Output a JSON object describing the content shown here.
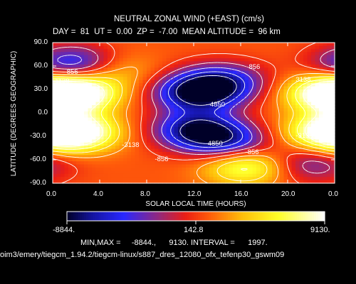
{
  "title_line1": "NEUTRAL ZONAL WIND (+EAST) (cm/s)",
  "title_line2": "DAY =  81  UT =  0.00  ZP =  -7.00  MEAN ALTITUDE =  96 km",
  "footer": {
    "minmax": "MIN,MAX =     -8844.,      9130. INTERVAL =      1997.",
    "path": "oim3/emery/tiegcm_1.94.2/tiegcm-linux/s887_dres_12080_ofx_tefenp30_gswm09"
  },
  "colorbar": {
    "min_label": "-8844.",
    "mid_label": "142.8",
    "max_label": "9130."
  },
  "chart_data": {
    "type": "heatmap",
    "title": "NEUTRAL ZONAL WIND (+EAST) (cm/s)",
    "xlabel": "SOLAR LOCAL TIME (HOURS)",
    "ylabel": "LATITUDE (DEGREES GEOGRAPHIC)",
    "xlim": [
      0,
      24
    ],
    "ylim": [
      -90,
      90
    ],
    "x_ticks": [
      "0.0",
      "4.0",
      "8.0",
      "12.0",
      "16.0",
      "20.0",
      "0.0"
    ],
    "y_ticks": [
      "90.0",
      "60.0",
      "30.0",
      "0.0",
      "-30.0",
      "-60.0",
      "-90.0"
    ],
    "min": -8844,
    "max": 9130,
    "interval": 1997,
    "center_value": 142.8,
    "contour_labels": [
      {
        "text": "856",
        "x": 1.8,
        "y": 52
      },
      {
        "text": "1138",
        "x": 0.8,
        "y": 40
      },
      {
        "text": "856",
        "x": 17.3,
        "y": 58
      },
      {
        "text": "3138",
        "x": 21.3,
        "y": 42
      },
      {
        "text": "-4850",
        "x": 13.8,
        "y": 10
      },
      {
        "text": "-3138",
        "x": 1.8,
        "y": -5
      },
      {
        "text": "-3138",
        "x": 21.3,
        "y": -30
      },
      {
        "text": "-3138",
        "x": 6.5,
        "y": -42
      },
      {
        "text": "4850",
        "x": 13.8,
        "y": -40
      },
      {
        "text": "-856",
        "x": 17.0,
        "y": -51
      },
      {
        "text": "-856",
        "x": 9.3,
        "y": -60
      }
    ],
    "features": [
      {
        "kind": "westward_max",
        "x": 1.9,
        "y": 62,
        "value": -7000
      },
      {
        "kind": "westward_max",
        "x": 12.3,
        "y": 25,
        "value": -8844
      },
      {
        "kind": "westward_max",
        "x": 14.4,
        "y": 40,
        "value": -6000
      },
      {
        "kind": "westward_max",
        "x": 12.3,
        "y": -22,
        "value": -8500
      },
      {
        "kind": "westward_max",
        "x": 15.0,
        "y": -38,
        "value": -5500
      },
      {
        "kind": "westward_max",
        "x": 21.8,
        "y": -65,
        "value": -4000
      },
      {
        "kind": "eastward_max",
        "x": 2.0,
        "y": 25,
        "value": 9130
      },
      {
        "kind": "eastward_max",
        "x": 2.0,
        "y": -25,
        "value": 8800
      },
      {
        "kind": "eastward_max",
        "x": 23.5,
        "y": 25,
        "value": 8500
      },
      {
        "kind": "eastward_max",
        "x": 23.5,
        "y": -25,
        "value": 8000
      },
      {
        "kind": "eastward_max",
        "x": 16.5,
        "y": -68,
        "value": 7000
      },
      {
        "kind": "eastward_max",
        "x": 5.0,
        "y": 55,
        "value": 3500
      }
    ]
  },
  "colors": {
    "strong_east": "#ffffff",
    "east": "#ffff20",
    "mid": "#ff1010",
    "west": "#2020ff",
    "strong_west": "#000020"
  }
}
